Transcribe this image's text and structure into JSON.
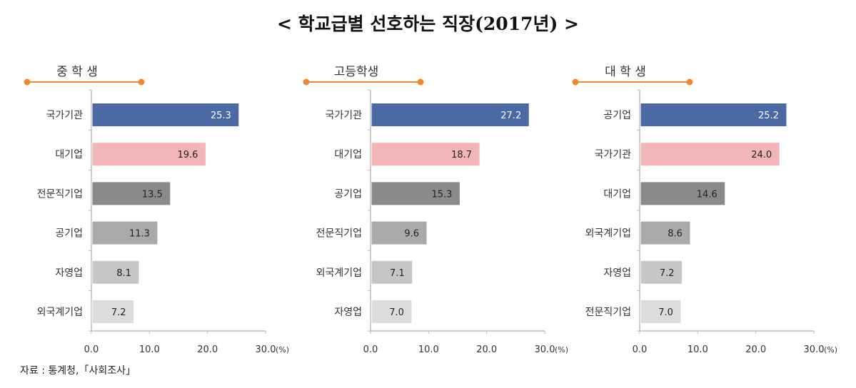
{
  "title": "< 학교급별 선호하는 직장(2017년) >",
  "source": "자료 : 통계청,「사회조사」",
  "colors": [
    "#4a69a5",
    "#f3b6b8",
    "#8a8a8a",
    "#aaaaaa",
    "#c6c6c6",
    "#dcdcdc"
  ],
  "accent": "#ee8733",
  "chart_data": [
    {
      "type": "bar",
      "orientation": "horizontal",
      "title": "중 학 생",
      "categories": [
        "국가기관",
        "대기업",
        "전문직기업",
        "공기업",
        "자영업",
        "외국계기업"
      ],
      "values": [
        25.3,
        19.6,
        13.5,
        11.3,
        8.1,
        7.2
      ],
      "xlim": [
        0,
        30
      ],
      "ticks": [
        "0.0",
        "10.0",
        "20.0",
        "30.0"
      ],
      "unit": "(%)"
    },
    {
      "type": "bar",
      "orientation": "horizontal",
      "title": "고등학생",
      "categories": [
        "국가기관",
        "대기업",
        "공기업",
        "전문직기업",
        "외국계기업",
        "자영업"
      ],
      "values": [
        27.2,
        18.7,
        15.3,
        9.6,
        7.1,
        7.0
      ],
      "xlim": [
        0,
        30
      ],
      "ticks": [
        "0.0",
        "10.0",
        "20.0",
        "30.0"
      ],
      "unit": "(%)"
    },
    {
      "type": "bar",
      "orientation": "horizontal",
      "title": "대 학 생",
      "categories": [
        "공기업",
        "국가기관",
        "대기업",
        "외국계기업",
        "자영업",
        "전문직기업"
      ],
      "values": [
        25.2,
        24.0,
        14.6,
        8.6,
        7.2,
        7.0
      ],
      "xlim": [
        0,
        30
      ],
      "ticks": [
        "0.0",
        "10.0",
        "20.0",
        "30.0"
      ],
      "unit": "(%)"
    }
  ]
}
